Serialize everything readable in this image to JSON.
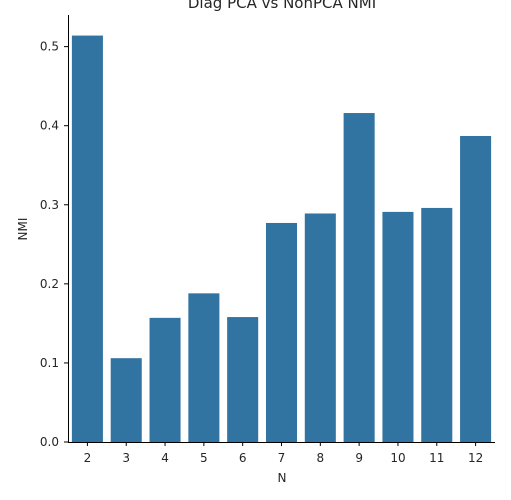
{
  "chart_data": {
    "type": "bar",
    "title": "Diag PCA vs NonPCA NMI",
    "xlabel": "N",
    "ylabel": "NMI",
    "categories": [
      "2",
      "3",
      "4",
      "5",
      "6",
      "7",
      "8",
      "9",
      "10",
      "11",
      "12"
    ],
    "values": [
      0.514,
      0.106,
      0.157,
      0.188,
      0.158,
      0.277,
      0.289,
      0.416,
      0.291,
      0.296,
      0.387
    ],
    "ylim": [
      0,
      0.54
    ],
    "yticks": [
      0.0,
      0.1,
      0.2,
      0.3,
      0.4,
      0.5
    ],
    "ytick_labels": [
      "0.0",
      "0.1",
      "0.2",
      "0.3",
      "0.4",
      "0.5"
    ],
    "bar_color": "#3274a1",
    "grid": false,
    "legend": "none"
  }
}
